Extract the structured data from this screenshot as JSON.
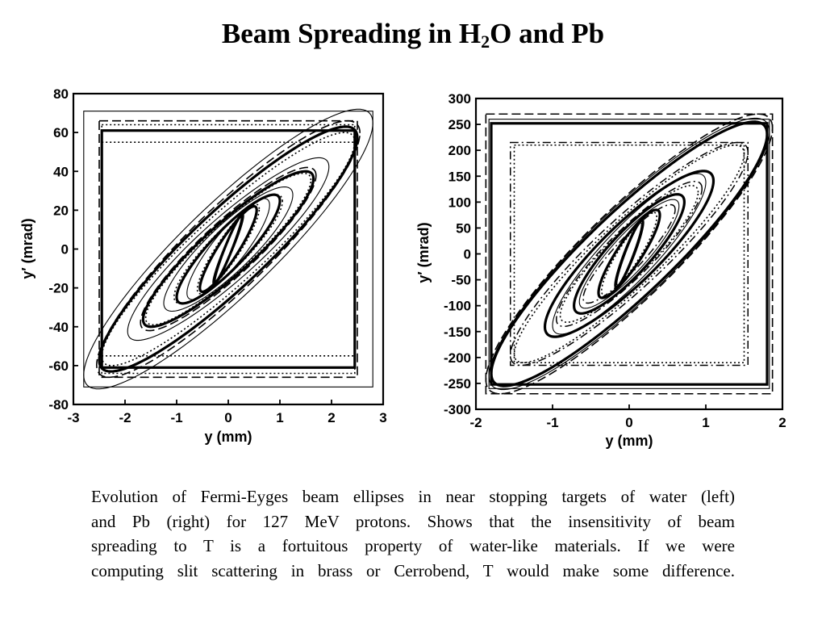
{
  "slide": {
    "title_prefix": "Beam Spreading in H",
    "title_sub": "2",
    "title_suffix": "O and Pb",
    "caption_lines": [
      "Evolution of Fermi-Eyges beam ellipses in near stopping targets of water (left)",
      "and Pb (right) for 127 MeV protons. Shows that the insensitivity of beam",
      "spreading to T is a fortuitous property of water-like materials. If we were",
      "computing slit scattering in brass or Cerrobend, T  would make some difference."
    ]
  },
  "chart_data": [
    {
      "type": "scatter",
      "title": "",
      "xlabel": "y  (mm)",
      "ylabel": "y′  (mrad)",
      "xlim": [
        -3,
        3
      ],
      "ylim": [
        -80,
        80
      ],
      "xticks": [
        -3,
        -2,
        -1,
        0,
        1,
        2,
        3
      ],
      "yticks": [
        -80,
        -60,
        -40,
        -20,
        0,
        20,
        40,
        60,
        80
      ],
      "grid": false,
      "series": [
        {
          "shape": "rect",
          "halfwidth": 2.8,
          "halfheight": 71,
          "style": "thin"
        },
        {
          "shape": "rect",
          "halfwidth": 2.5,
          "halfheight": 66,
          "style": "dash"
        },
        {
          "shape": "rect",
          "halfwidth": 2.45,
          "halfheight": 64,
          "style": "dot"
        },
        {
          "shape": "rect",
          "halfwidth": 2.45,
          "halfheight": 61,
          "style": "thick"
        },
        {
          "shape": "rect",
          "halfwidth": 2.45,
          "halfheight": 55,
          "style": "dot"
        },
        {
          "shape": "ellipse",
          "sigma_y": 2.8,
          "sigma_yp": 72,
          "corr": 0.9,
          "style": "thin"
        },
        {
          "shape": "ellipse",
          "sigma_y": 2.55,
          "sigma_yp": 66,
          "corr": 0.905,
          "style": "dash"
        },
        {
          "shape": "ellipse",
          "sigma_y": 2.5,
          "sigma_yp": 63,
          "corr": 0.91,
          "style": "thick"
        },
        {
          "shape": "ellipse",
          "sigma_y": 2.45,
          "sigma_yp": 60,
          "corr": 0.92,
          "style": "dot"
        },
        {
          "shape": "ellipse",
          "sigma_y": 1.95,
          "sigma_yp": 47,
          "corr": 0.9,
          "style": "thin"
        },
        {
          "shape": "ellipse",
          "sigma_y": 1.7,
          "sigma_yp": 42,
          "corr": 0.9,
          "style": "dash"
        },
        {
          "shape": "ellipse",
          "sigma_y": 1.65,
          "sigma_yp": 40,
          "corr": 0.905,
          "style": "thick"
        },
        {
          "shape": "ellipse",
          "sigma_y": 1.6,
          "sigma_yp": 39,
          "corr": 0.91,
          "style": "dot"
        },
        {
          "shape": "ellipse",
          "sigma_y": 1.25,
          "sigma_yp": 32,
          "corr": 0.87,
          "style": "thin"
        },
        {
          "shape": "ellipse",
          "sigma_y": 1.05,
          "sigma_yp": 28,
          "corr": 0.88,
          "style": "dot"
        },
        {
          "shape": "ellipse",
          "sigma_y": 1.0,
          "sigma_yp": 28,
          "corr": 0.885,
          "style": "thick"
        },
        {
          "shape": "ellipse",
          "sigma_y": 0.8,
          "sigma_yp": 26,
          "corr": 0.87,
          "style": "thin"
        },
        {
          "shape": "ellipse",
          "sigma_y": 0.6,
          "sigma_yp": 23,
          "corr": 0.9,
          "style": "dot"
        },
        {
          "shape": "ellipse",
          "sigma_y": 0.55,
          "sigma_yp": 22,
          "corr": 0.91,
          "style": "thick"
        },
        {
          "shape": "ellipse",
          "sigma_y": 0.3,
          "sigma_yp": 18,
          "corr": 0.95,
          "style": "thin"
        },
        {
          "shape": "ellipse",
          "sigma_y": 0.27,
          "sigma_yp": 17.5,
          "corr": 0.96,
          "style": "thick"
        }
      ]
    },
    {
      "type": "scatter",
      "title": "",
      "xlabel": "y  (mm)",
      "ylabel": "y′  (mrad)",
      "xlim": [
        -2,
        2
      ],
      "ylim": [
        -300,
        300
      ],
      "xticks": [
        -2,
        -1,
        0,
        1,
        2
      ],
      "yticks": [
        -300,
        -250,
        -200,
        -150,
        -100,
        -50,
        0,
        50,
        100,
        150,
        200,
        250,
        300
      ],
      "grid": false,
      "series": [
        {
          "shape": "rect",
          "halfwidth": 1.87,
          "halfheight": 270,
          "style": "dash"
        },
        {
          "shape": "rect",
          "halfwidth": 1.83,
          "halfheight": 260,
          "style": "thin"
        },
        {
          "shape": "rect",
          "halfwidth": 1.8,
          "halfheight": 252,
          "style": "thick"
        },
        {
          "shape": "rect",
          "halfwidth": 1.55,
          "halfheight": 215,
          "style": "dashdot"
        },
        {
          "shape": "rect",
          "halfwidth": 1.5,
          "halfheight": 210,
          "style": "dot"
        },
        {
          "shape": "ellipse",
          "sigma_y": 1.87,
          "sigma_yp": 270,
          "corr": 0.9,
          "style": "dash"
        },
        {
          "shape": "ellipse",
          "sigma_y": 1.83,
          "sigma_yp": 262,
          "corr": 0.9,
          "style": "thin"
        },
        {
          "shape": "ellipse",
          "sigma_y": 1.8,
          "sigma_yp": 255,
          "corr": 0.905,
          "style": "thick"
        },
        {
          "shape": "ellipse",
          "sigma_y": 1.55,
          "sigma_yp": 215,
          "corr": 0.91,
          "style": "dashdot"
        },
        {
          "shape": "ellipse",
          "sigma_y": 1.5,
          "sigma_yp": 210,
          "corr": 0.92,
          "style": "dot"
        },
        {
          "shape": "ellipse",
          "sigma_y": 1.1,
          "sigma_yp": 160,
          "corr": 0.88,
          "style": "thick"
        },
        {
          "shape": "ellipse",
          "sigma_y": 1.0,
          "sigma_yp": 155,
          "corr": 0.89,
          "style": "thin"
        },
        {
          "shape": "ellipse",
          "sigma_y": 0.95,
          "sigma_yp": 140,
          "corr": 0.9,
          "style": "dashdot"
        },
        {
          "shape": "ellipse",
          "sigma_y": 0.9,
          "sigma_yp": 132,
          "corr": 0.9,
          "style": "dot"
        },
        {
          "shape": "ellipse",
          "sigma_y": 0.72,
          "sigma_yp": 115,
          "corr": 0.87,
          "style": "thick"
        },
        {
          "shape": "ellipse",
          "sigma_y": 0.65,
          "sigma_yp": 105,
          "corr": 0.88,
          "style": "thin"
        },
        {
          "shape": "ellipse",
          "sigma_y": 0.6,
          "sigma_yp": 95,
          "corr": 0.9,
          "style": "dashdot"
        },
        {
          "shape": "ellipse",
          "sigma_y": 0.4,
          "sigma_yp": 85,
          "corr": 0.88,
          "style": "thick"
        },
        {
          "shape": "ellipse",
          "sigma_y": 0.36,
          "sigma_yp": 80,
          "corr": 0.89,
          "style": "dot"
        },
        {
          "shape": "ellipse",
          "sigma_y": 0.18,
          "sigma_yp": 65,
          "corr": 0.93,
          "style": "thick"
        },
        {
          "shape": "ellipse",
          "sigma_y": 0.16,
          "sigma_yp": 60,
          "corr": 0.95,
          "style": "thin"
        }
      ]
    }
  ]
}
